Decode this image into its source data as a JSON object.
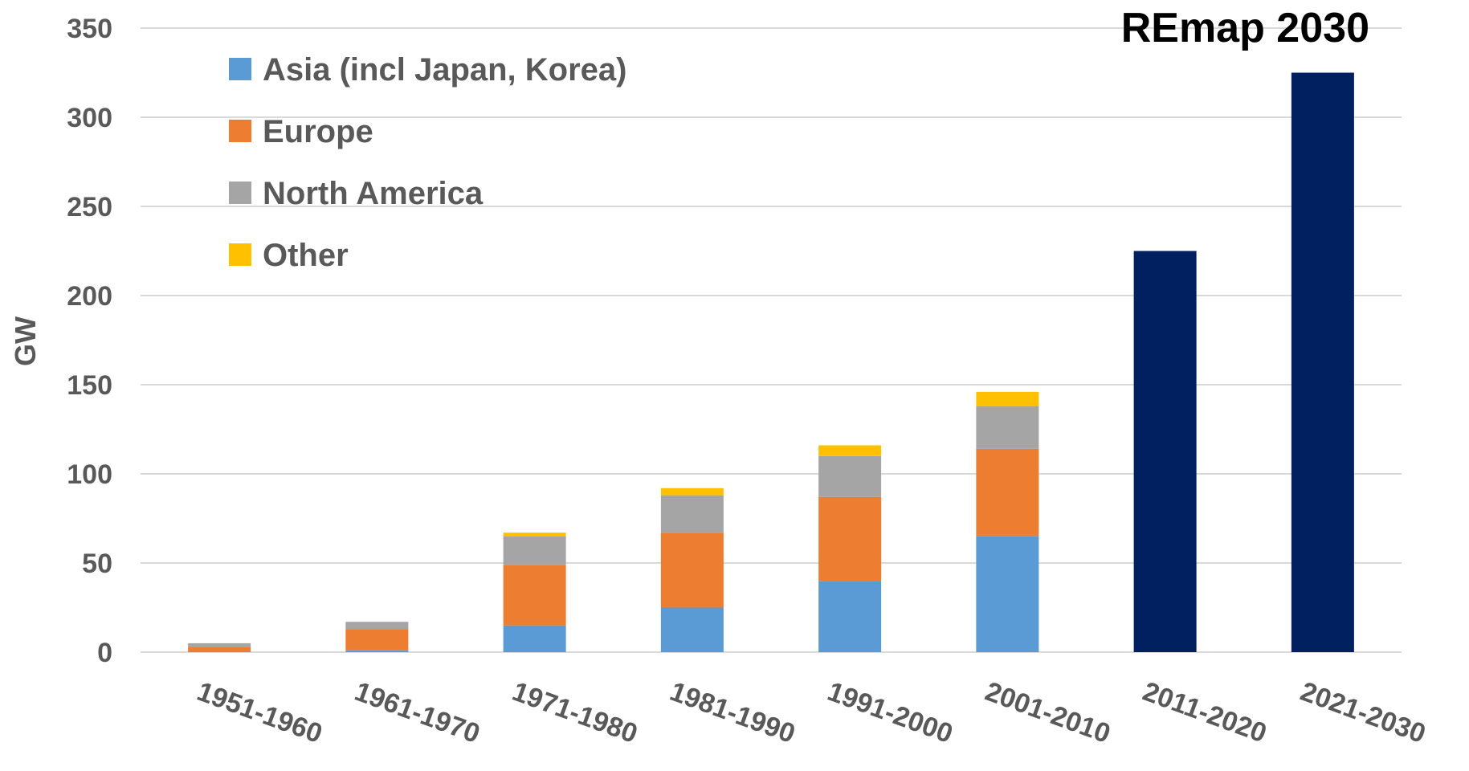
{
  "chart_data": {
    "type": "bar",
    "stacked": true,
    "title": "REmap 2030",
    "xlabel": "",
    "ylabel": "GW",
    "ylim": [
      0,
      350
    ],
    "yticks": [
      0,
      50,
      100,
      150,
      200,
      250,
      300,
      350
    ],
    "grid": true,
    "legend_position": "top-left",
    "categories": [
      "1951-1960",
      "1961-1970",
      "1971-1980",
      "1981-1990",
      "1991-2000",
      "2001-2010",
      "2011-2020",
      "2021-2030"
    ],
    "series": [
      {
        "name": "Asia (incl Japan, Korea)",
        "color": "#5B9BD5",
        "values": [
          0,
          1,
          15,
          25,
          40,
          65,
          0,
          0
        ]
      },
      {
        "name": "Europe",
        "color": "#ED7D31",
        "values": [
          3,
          12,
          34,
          42,
          47,
          49,
          0,
          0
        ]
      },
      {
        "name": "North America",
        "color": "#A5A5A5",
        "values": [
          2,
          4,
          16,
          21,
          23,
          24,
          0,
          0
        ]
      },
      {
        "name": "Other",
        "color": "#FFC000",
        "values": [
          0,
          0,
          2,
          4,
          6,
          8,
          0,
          0
        ]
      },
      {
        "name": "",
        "color": "#002060",
        "values": [
          0,
          0,
          0,
          0,
          0,
          0,
          225,
          325
        ]
      }
    ]
  }
}
